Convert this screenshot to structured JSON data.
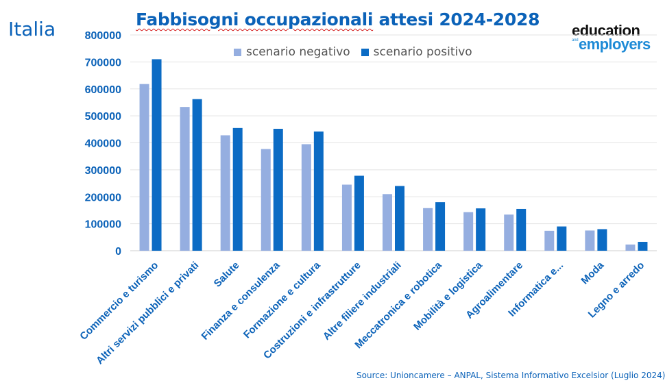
{
  "region_label": "Italia",
  "title": "Fabbisogni occupazionali attesi 2024-2028",
  "title_parts": {
    "underlined": "Fabbisogni occupazionali",
    "rest": " attesi 2024-2028"
  },
  "logo": {
    "top": "education",
    "and": "and",
    "bottom": "employers"
  },
  "source": "Source: Unioncamere – ANPAL, Sistema Informativo Excelsior (Luglio 2024)",
  "colors": {
    "negative": "#95aee0",
    "positive": "#0b6bc4",
    "text": "#0b62b8",
    "grid": "#e3e3e3"
  },
  "chart_data": {
    "type": "bar",
    "title": "Fabbisogni occupazionali attesi 2024-2028",
    "xlabel": "",
    "ylabel": "",
    "ylim": [
      0,
      800000
    ],
    "yticks": [
      0,
      100000,
      200000,
      300000,
      400000,
      500000,
      600000,
      700000,
      800000
    ],
    "grid": true,
    "legend_position": "top",
    "categories": [
      "Commercio e turismo",
      "Altri servizi pubblici e privati",
      "Salute",
      "Finanza e consulenza",
      "Formazione e cultura",
      "Costruzioni e infrastrutture",
      "Altre filiere industriali",
      "Meccatronica e robotica",
      "Mobilità e logistica",
      "Agroalimentare",
      "Informatica e...",
      "Moda",
      "Legno e arredo"
    ],
    "series": [
      {
        "name": "scenario negativo",
        "color": "#95aee0",
        "values": [
          618000,
          533000,
          428000,
          377000,
          395000,
          245000,
          210000,
          158000,
          143000,
          134000,
          74000,
          75000,
          23000
        ]
      },
      {
        "name": "scenario positivo",
        "color": "#0b6bc4",
        "values": [
          710000,
          562000,
          455000,
          452000,
          442000,
          278000,
          240000,
          180000,
          157000,
          155000,
          90000,
          80000,
          33000
        ]
      }
    ]
  }
}
